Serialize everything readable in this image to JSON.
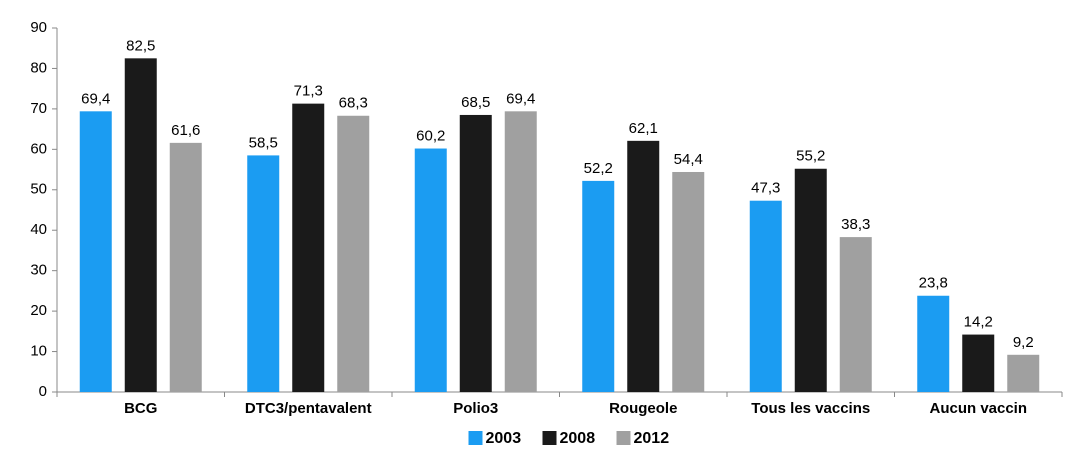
{
  "chart_data": {
    "type": "bar",
    "categories": [
      "BCG",
      "DTC3/pentavalent",
      "Polio3",
      "Rougeole",
      "Tous les vaccins",
      "Aucun vaccin"
    ],
    "series": [
      {
        "name": "2003",
        "color": "#1b9cf2",
        "values": [
          69.4,
          58.5,
          60.2,
          52.2,
          47.3,
          23.8
        ],
        "value_labels": [
          "69,4",
          "58,5",
          "60,2",
          "52,2",
          "47,3",
          "23,8"
        ]
      },
      {
        "name": "2008",
        "color": "#1a1a1a",
        "values": [
          82.5,
          71.3,
          68.5,
          62.1,
          55.2,
          14.2
        ],
        "value_labels": [
          "82,5",
          "71,3",
          "68,5",
          "62,1",
          "55,2",
          "14,2"
        ]
      },
      {
        "name": "2012",
        "color": "#a0a0a0",
        "values": [
          61.6,
          68.3,
          69.4,
          54.4,
          38.3,
          9.2
        ],
        "value_labels": [
          "61,6",
          "68,3",
          "69,4",
          "54,4",
          "38,3",
          "9,2"
        ]
      }
    ],
    "ylim": [
      0,
      90
    ],
    "yticks": [
      0,
      10,
      20,
      30,
      40,
      50,
      60,
      70,
      80,
      90
    ],
    "grid": false,
    "legend": "bottom"
  }
}
